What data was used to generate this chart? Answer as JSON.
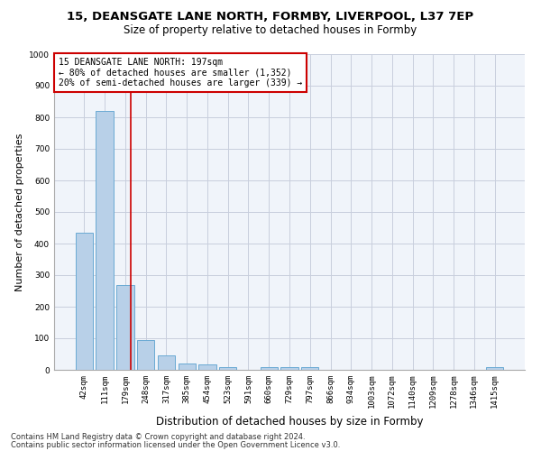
{
  "title1": "15, DEANSGATE LANE NORTH, FORMBY, LIVERPOOL, L37 7EP",
  "title2": "Size of property relative to detached houses in Formby",
  "xlabel": "Distribution of detached houses by size in Formby",
  "ylabel": "Number of detached properties",
  "categories": [
    "42sqm",
    "111sqm",
    "179sqm",
    "248sqm",
    "317sqm",
    "385sqm",
    "454sqm",
    "523sqm",
    "591sqm",
    "660sqm",
    "729sqm",
    "797sqm",
    "866sqm",
    "934sqm",
    "1003sqm",
    "1072sqm",
    "1140sqm",
    "1209sqm",
    "1278sqm",
    "1346sqm",
    "1415sqm"
  ],
  "values": [
    435,
    820,
    270,
    93,
    45,
    20,
    17,
    10,
    0,
    10,
    10,
    10,
    0,
    0,
    0,
    0,
    0,
    0,
    0,
    0,
    10
  ],
  "bar_color": "#b8d0e8",
  "bar_edge_color": "#6aaad4",
  "bar_width": 0.85,
  "vline_color": "#cc0000",
  "annotation_text": "15 DEANSGATE LANE NORTH: 197sqm\n← 80% of detached houses are smaller (1,352)\n20% of semi-detached houses are larger (339) →",
  "annotation_box_color": "#cc0000",
  "ylim": [
    0,
    1000
  ],
  "yticks": [
    0,
    100,
    200,
    300,
    400,
    500,
    600,
    700,
    800,
    900,
    1000
  ],
  "footer1": "Contains HM Land Registry data © Crown copyright and database right 2024.",
  "footer2": "Contains public sector information licensed under the Open Government Licence v3.0.",
  "bg_color": "#f0f4fa",
  "grid_color": "#c8cedd",
  "title1_fontsize": 9.5,
  "title2_fontsize": 8.5,
  "xlabel_fontsize": 8.5,
  "ylabel_fontsize": 8,
  "tick_fontsize": 6.5,
  "annotation_fontsize": 7,
  "footer_fontsize": 6
}
